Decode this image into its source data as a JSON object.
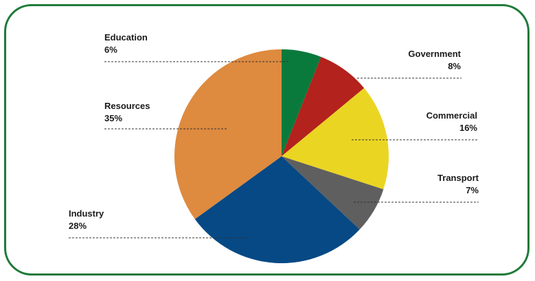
{
  "chart_data": {
    "type": "pie",
    "title": "",
    "start_angle_deg": 0,
    "direction": "clockwise",
    "slices": [
      {
        "name": "Education",
        "value": 6,
        "label": "6%",
        "color": "#0a7a3c"
      },
      {
        "name": "Government",
        "value": 8,
        "label": "8%",
        "color": "#b3221c"
      },
      {
        "name": "Commercial",
        "value": 16,
        "label": "16%",
        "color": "#ebd523"
      },
      {
        "name": "Transport",
        "value": 7,
        "label": "7%",
        "color": "#5f5f5f"
      },
      {
        "name": "Industry",
        "value": 28,
        "label": "28%",
        "color": "#064985"
      },
      {
        "name": "Resources",
        "value": 35,
        "label": "35%",
        "color": "#de8a3f"
      }
    ],
    "legend": "none",
    "labels": "outside-with-leader-lines"
  },
  "colors": {
    "frame_border": "#1e7a3a",
    "leader_line": "#333333",
    "label_text": "#1a1a1a"
  }
}
